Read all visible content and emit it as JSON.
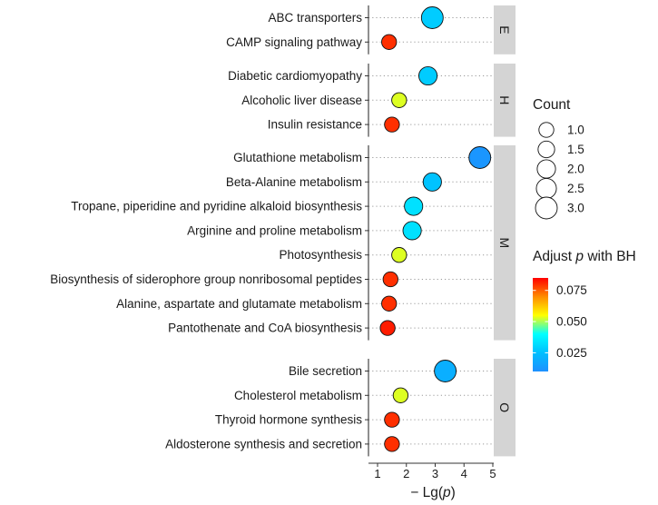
{
  "chart_data": {
    "type": "scatter",
    "xlabel": "− Lg(p)",
    "xlim": [
      0.9,
      5.1
    ],
    "xticks": [
      1,
      2,
      3,
      4,
      5
    ],
    "grid": "horizontal-dotted",
    "panels": [
      {
        "name": "E",
        "points": [
          {
            "label": "ABC transporters",
            "x": 2.9,
            "count": 3,
            "padj": 0.028
          },
          {
            "label": "CAMP signaling pathway",
            "x": 1.4,
            "count": 1,
            "padj": 0.08
          }
        ]
      },
      {
        "name": "H",
        "points": [
          {
            "label": "Diabetic cardiomyopathy",
            "x": 2.75,
            "count": 2,
            "padj": 0.028
          },
          {
            "label": "Alcoholic liver disease",
            "x": 1.75,
            "count": 1,
            "padj": 0.053
          },
          {
            "label": "Insulin resistance",
            "x": 1.5,
            "count": 1,
            "padj": 0.08
          }
        ]
      },
      {
        "name": "M",
        "points": [
          {
            "label": "Glutathione metabolism",
            "x": 4.55,
            "count": 3,
            "padj": 0.012
          },
          {
            "label": "Beta-Alanine metabolism",
            "x": 2.9,
            "count": 2,
            "padj": 0.026
          },
          {
            "label": "Tropane, piperidine and pyridine alkaloid biosynthesis",
            "x": 2.25,
            "count": 2,
            "padj": 0.033
          },
          {
            "label": "Arginine and proline metabolism",
            "x": 2.2,
            "count": 2,
            "padj": 0.033
          },
          {
            "label": "Photosynthesis",
            "x": 1.75,
            "count": 1,
            "padj": 0.053
          },
          {
            "label": "Biosynthesis of siderophore group nonribosomal peptides",
            "x": 1.45,
            "count": 1,
            "padj": 0.08
          },
          {
            "label": "Alanine, aspartate and glutamate metabolism",
            "x": 1.4,
            "count": 1,
            "padj": 0.08
          },
          {
            "label": "Pantothenate and CoA biosynthesis",
            "x": 1.35,
            "count": 1,
            "padj": 0.082
          }
        ]
      },
      {
        "name": "O",
        "points": [
          {
            "label": "Bile secretion",
            "x": 3.35,
            "count": 3,
            "padj": 0.02
          },
          {
            "label": "Cholesterol metabolism",
            "x": 1.8,
            "count": 1,
            "padj": 0.053
          },
          {
            "label": "Thyroid hormone synthesis",
            "x": 1.5,
            "count": 1,
            "padj": 0.08
          },
          {
            "label": "Aldosterone synthesis and secretion",
            "x": 1.5,
            "count": 1,
            "padj": 0.08
          }
        ]
      }
    ],
    "size_legend": {
      "title": "Count",
      "values": [
        1.0,
        1.5,
        2.0,
        2.5,
        3.0
      ],
      "labels": [
        "1.0",
        "1.5",
        "2.0",
        "2.5",
        "3.0"
      ]
    },
    "color_legend": {
      "title_pre": "Adjust ",
      "title_italic": "p",
      "title_post": " with BH",
      "ticks": [
        0.075,
        0.05,
        0.025
      ],
      "tick_labels": [
        "0.075",
        "0.050",
        "0.025"
      ],
      "range": [
        0.01,
        0.085
      ],
      "colors": [
        "#1E90FF",
        "#00BFFF",
        "#00FFFF",
        "#FFFF00",
        "#FF8C00",
        "#FF0000"
      ]
    }
  }
}
